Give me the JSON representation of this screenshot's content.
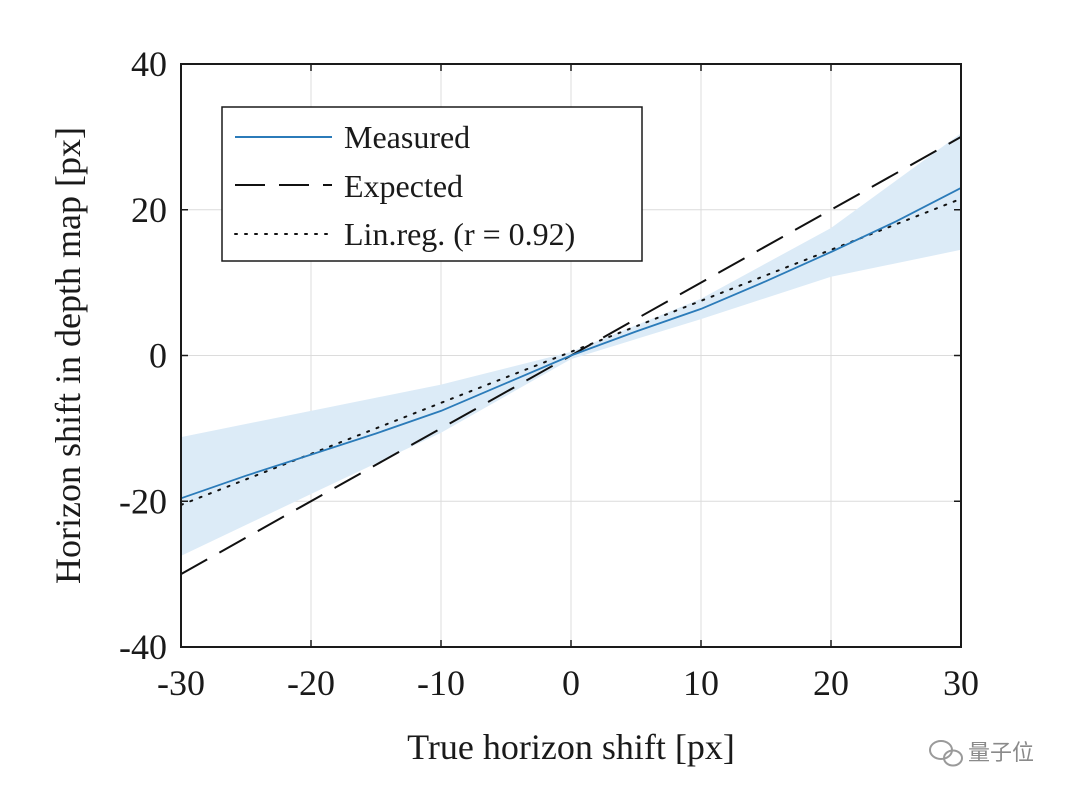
{
  "chart_data": {
    "type": "line",
    "xlabel": "True horizon shift [px]",
    "ylabel": "Horizon shift in depth map [px]",
    "xlim": [
      -30,
      30
    ],
    "ylim": [
      -40,
      40
    ],
    "xticks": [
      -30,
      -20,
      -10,
      0,
      10,
      20,
      30
    ],
    "yticks": [
      -40,
      -20,
      0,
      20,
      40
    ],
    "xtick_labels": [
      "-30",
      "-20",
      "-10",
      "0",
      "10",
      "20",
      "30"
    ],
    "ytick_labels": [
      "-40",
      "-20",
      "0",
      "20",
      "40"
    ],
    "grid": true,
    "legend_position": "top-left",
    "series": [
      {
        "name": "Measured",
        "style": "solid",
        "color": "#2b7bb9",
        "x": [
          -30,
          -25,
          -20,
          -15,
          -10,
          -5,
          0,
          5,
          10,
          15,
          20,
          25,
          30
        ],
        "y": [
          -19.6,
          -16.5,
          -13.6,
          -10.7,
          -7.6,
          -3.8,
          0,
          3.3,
          6.4,
          10.2,
          14.2,
          18.4,
          23.0
        ]
      },
      {
        "name": "Expected",
        "style": "dashed",
        "color": "#111111",
        "x": [
          -30,
          30
        ],
        "y": [
          -30,
          30
        ]
      },
      {
        "name": "Lin.reg. (r = 0.92)",
        "style": "dotted",
        "color": "#111111",
        "x": [
          -30,
          30
        ],
        "y": [
          -20.5,
          21.5
        ]
      }
    ],
    "confidence_band": {
      "color": "#dcebf7",
      "x": [
        -30,
        -20,
        -10,
        0,
        10,
        20,
        30
      ],
      "upper": [
        -11.2,
        -7.6,
        -4.0,
        0.5,
        7.8,
        17.5,
        30.5
      ],
      "lower": [
        -27.5,
        -19.0,
        -10.6,
        -0.5,
        5.0,
        10.8,
        14.5
      ]
    }
  },
  "watermark": {
    "text": "量子位",
    "icon": "wechat-logo-icon"
  }
}
